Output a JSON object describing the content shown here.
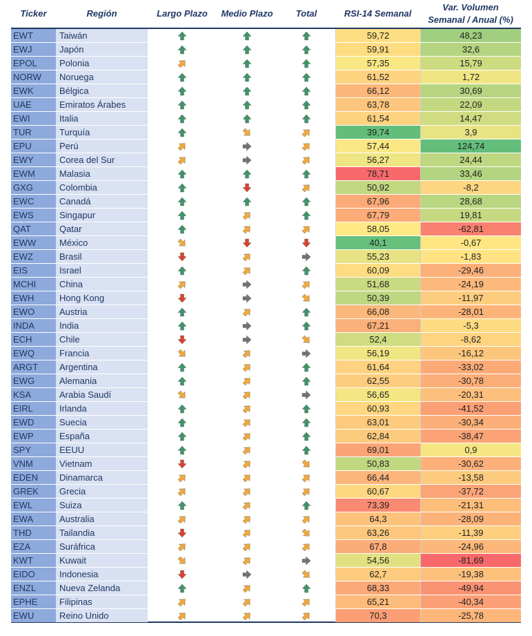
{
  "headers": {
    "ticker": "Ticker",
    "region": "Región",
    "long_term": "Largo Plazo",
    "mid_term": "Medio Plazo",
    "total": "Total",
    "rsi": "RSI-14 Semanal",
    "volume_line1": "Var. Volumen",
    "volume_line2": "Semanal / Anual (%)"
  },
  "colors": {
    "up": "#3f9468",
    "up_right": "#f2a93b",
    "right": "#767171",
    "down_right": "#f2a93b",
    "down": "#d9432e"
  },
  "rows": [
    {
      "ticker": "EWT",
      "region": "Taiwán",
      "lp": "up",
      "mp": "up",
      "total": "up",
      "rsi": "59,72",
      "vol": "48,23"
    },
    {
      "ticker": "EWJ",
      "region": "Japón",
      "lp": "up",
      "mp": "up",
      "total": "up",
      "rsi": "59,91",
      "vol": "32,6"
    },
    {
      "ticker": "EPOL",
      "region": "Polonia",
      "lp": "up_right",
      "mp": "up",
      "total": "up",
      "rsi": "57,35",
      "vol": "15,79"
    },
    {
      "ticker": "NORW",
      "region": "Noruega",
      "lp": "up",
      "mp": "up",
      "total": "up",
      "rsi": "61,52",
      "vol": "1,72"
    },
    {
      "ticker": "EWK",
      "region": "Bélgica",
      "lp": "up",
      "mp": "up",
      "total": "up",
      "rsi": "66,12",
      "vol": "30,69"
    },
    {
      "ticker": "UAE",
      "region": "Emiratos Árabes",
      "lp": "up",
      "mp": "up",
      "total": "up",
      "rsi": "63,78",
      "vol": "22,09"
    },
    {
      "ticker": "EWI",
      "region": "Italia",
      "lp": "up",
      "mp": "up",
      "total": "up",
      "rsi": "61,54",
      "vol": "14,47"
    },
    {
      "ticker": "TUR",
      "region": "Turquía",
      "lp": "up",
      "mp": "down_right",
      "total": "up_right",
      "rsi": "39,74",
      "vol": "3,9"
    },
    {
      "ticker": "EPU",
      "region": "Perú",
      "lp": "up_right",
      "mp": "right",
      "total": "up_right",
      "rsi": "57,44",
      "vol": "124,74"
    },
    {
      "ticker": "EWY",
      "region": "Corea del Sur",
      "lp": "up_right",
      "mp": "right",
      "total": "up_right",
      "rsi": "56,27",
      "vol": "24,44"
    },
    {
      "ticker": "EWM",
      "region": "Malasia",
      "lp": "up",
      "mp": "up",
      "total": "up",
      "rsi": "78,71",
      "vol": "33,46"
    },
    {
      "ticker": "GXG",
      "region": "Colombia",
      "lp": "up",
      "mp": "down",
      "total": "up_right",
      "rsi": "50,92",
      "vol": "-8,2"
    },
    {
      "ticker": "EWC",
      "region": "Canadá",
      "lp": "up",
      "mp": "up",
      "total": "up",
      "rsi": "67,96",
      "vol": "28,68"
    },
    {
      "ticker": "EWS",
      "region": "Singapur",
      "lp": "up",
      "mp": "up_right",
      "total": "up",
      "rsi": "67,79",
      "vol": "19,81"
    },
    {
      "ticker": "QAT",
      "region": "Qatar",
      "lp": "up",
      "mp": "up_right",
      "total": "up_right",
      "rsi": "58,05",
      "vol": "-62,81"
    },
    {
      "ticker": "EWW",
      "region": "México",
      "lp": "down_right",
      "mp": "down",
      "total": "down",
      "rsi": "40,1",
      "vol": "-0,67"
    },
    {
      "ticker": "EWZ",
      "region": "Brasil",
      "lp": "down",
      "mp": "up_right",
      "total": "right",
      "rsi": "55,23",
      "vol": "-1,83"
    },
    {
      "ticker": "EIS",
      "region": "Israel",
      "lp": "up",
      "mp": "up_right",
      "total": "up",
      "rsi": "60,09",
      "vol": "-29,46"
    },
    {
      "ticker": "MCHI",
      "region": "China",
      "lp": "up_right",
      "mp": "right",
      "total": "up_right",
      "rsi": "51,68",
      "vol": "-24,19"
    },
    {
      "ticker": "EWH",
      "region": "Hong Kong",
      "lp": "down",
      "mp": "right",
      "total": "down_right",
      "rsi": "50,39",
      "vol": "-11,97"
    },
    {
      "ticker": "EWO",
      "region": "Austria",
      "lp": "up",
      "mp": "up_right",
      "total": "up",
      "rsi": "66,08",
      "vol": "-28,01"
    },
    {
      "ticker": "INDA",
      "region": "India",
      "lp": "up",
      "mp": "right",
      "total": "up",
      "rsi": "67,21",
      "vol": "-5,3"
    },
    {
      "ticker": "ECH",
      "region": "Chile",
      "lp": "down",
      "mp": "right",
      "total": "down_right",
      "rsi": "52,4",
      "vol": "-8,62"
    },
    {
      "ticker": "EWQ",
      "region": "Francia",
      "lp": "down_right",
      "mp": "up_right",
      "total": "right",
      "rsi": "56,19",
      "vol": "-16,12"
    },
    {
      "ticker": "ARGT",
      "region": "Argentina",
      "lp": "up",
      "mp": "up_right",
      "total": "up",
      "rsi": "61,64",
      "vol": "-33,02"
    },
    {
      "ticker": "EWG",
      "region": "Alemania",
      "lp": "up",
      "mp": "up_right",
      "total": "up",
      "rsi": "62,55",
      "vol": "-30,78"
    },
    {
      "ticker": "KSA",
      "region": "Arabia Saudí",
      "lp": "down_right",
      "mp": "up_right",
      "total": "right",
      "rsi": "56,65",
      "vol": "-20,31"
    },
    {
      "ticker": "EIRL",
      "region": "Irlanda",
      "lp": "up",
      "mp": "up_right",
      "total": "up",
      "rsi": "60,93",
      "vol": "-41,52"
    },
    {
      "ticker": "EWD",
      "region": "Suecia",
      "lp": "up",
      "mp": "up_right",
      "total": "up",
      "rsi": "63,01",
      "vol": "-30,34"
    },
    {
      "ticker": "EWP",
      "region": "España",
      "lp": "up",
      "mp": "up_right",
      "total": "up",
      "rsi": "62,84",
      "vol": "-38,47"
    },
    {
      "ticker": "SPY",
      "region": "EEUU",
      "lp": "up",
      "mp": "up_right",
      "total": "up",
      "rsi": "69,01",
      "vol": "0,9"
    },
    {
      "ticker": "VNM",
      "region": "Vietnam",
      "lp": "down",
      "mp": "up_right",
      "total": "down_right",
      "rsi": "50,83",
      "vol": "-30,62"
    },
    {
      "ticker": "EDEN",
      "region": "Dinamarca",
      "lp": "up_right",
      "mp": "up_right",
      "total": "up_right",
      "rsi": "66,44",
      "vol": "-13,58"
    },
    {
      "ticker": "GREK",
      "region": "Grecia",
      "lp": "up_right",
      "mp": "up_right",
      "total": "up_right",
      "rsi": "60,67",
      "vol": "-37,72"
    },
    {
      "ticker": "EWL",
      "region": "Suiza",
      "lp": "up",
      "mp": "up_right",
      "total": "up",
      "rsi": "73,39",
      "vol": "-21,31"
    },
    {
      "ticker": "EWA",
      "region": "Australia",
      "lp": "up_right",
      "mp": "up_right",
      "total": "up_right",
      "rsi": "64,3",
      "vol": "-28,09"
    },
    {
      "ticker": "THD",
      "region": "Tailandia",
      "lp": "down",
      "mp": "up_right",
      "total": "down_right",
      "rsi": "63,26",
      "vol": "-11,39"
    },
    {
      "ticker": "EZA",
      "region": "Suráfrica",
      "lp": "up_right",
      "mp": "up_right",
      "total": "up_right",
      "rsi": "67,8",
      "vol": "-24,96"
    },
    {
      "ticker": "KWT",
      "region": "Kuwait",
      "lp": "down_right",
      "mp": "up_right",
      "total": "right",
      "rsi": "54,56",
      "vol": "-81,69"
    },
    {
      "ticker": "EIDO",
      "region": "Indonesia",
      "lp": "down",
      "mp": "right",
      "total": "down_right",
      "rsi": "62,7",
      "vol": "-19,38"
    },
    {
      "ticker": "ENZL",
      "region": "Nueva Zelanda",
      "lp": "up",
      "mp": "up_right",
      "total": "up",
      "rsi": "68,33",
      "vol": "-49,94"
    },
    {
      "ticker": "EPHE",
      "region": "Filipinas",
      "lp": "up_right",
      "mp": "up_right",
      "total": "up_right",
      "rsi": "65,21",
      "vol": "-40,34"
    },
    {
      "ticker": "EWU",
      "region": "Reino Unido",
      "lp": "up_right",
      "mp": "up_right",
      "total": "up_right",
      "rsi": "70,3",
      "vol": "-25,78"
    }
  ]
}
